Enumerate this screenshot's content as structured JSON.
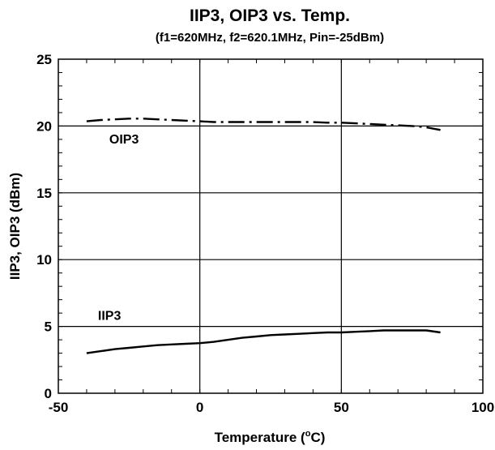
{
  "chart_data": {
    "type": "line",
    "title": "IIP3, OIP3 vs. Temp.",
    "subtitle": "(f1=620MHz, f2=620.1MHz, Pin=-25dBm)",
    "xlabel_prefix": "Temperature (",
    "xlabel_sup": "o",
    "xlabel_suffix": "C)",
    "ylabel": "IIP3, OIP3 (dBm)",
    "xlim": [
      -50,
      100
    ],
    "ylim": [
      0,
      25
    ],
    "x_ticks": [
      -50,
      0,
      50,
      100
    ],
    "y_ticks": [
      0,
      5,
      10,
      15,
      20,
      25
    ],
    "x_tick_labels": [
      "-50",
      "0",
      "50",
      "100"
    ],
    "y_tick_labels": [
      "0",
      "5",
      "10",
      "15",
      "20",
      "25"
    ],
    "grid": true,
    "annotations": [
      {
        "text": "OIP3",
        "x": -32,
        "y": 18.7
      },
      {
        "text": "IIP3",
        "x": -36,
        "y": 5.5
      }
    ],
    "series": [
      {
        "name": "OIP3",
        "style": "dashdot",
        "x": [
          -40,
          -35,
          -30,
          -25,
          -20,
          -15,
          -10,
          -5,
          0,
          5,
          10,
          15,
          20,
          25,
          30,
          35,
          40,
          45,
          50,
          55,
          60,
          65,
          70,
          75,
          80,
          85
        ],
        "y": [
          20.35,
          20.45,
          20.5,
          20.55,
          20.55,
          20.5,
          20.45,
          20.4,
          20.35,
          20.3,
          20.3,
          20.3,
          20.3,
          20.3,
          20.3,
          20.3,
          20.3,
          20.25,
          20.25,
          20.2,
          20.15,
          20.1,
          20.05,
          20.0,
          19.9,
          19.7
        ]
      },
      {
        "name": "IIP3",
        "style": "solid",
        "x": [
          -40,
          -35,
          -30,
          -25,
          -20,
          -15,
          -10,
          -5,
          0,
          5,
          10,
          15,
          20,
          25,
          30,
          35,
          40,
          45,
          50,
          55,
          60,
          65,
          70,
          75,
          80,
          85
        ],
        "y": [
          3.0,
          3.15,
          3.3,
          3.4,
          3.5,
          3.6,
          3.65,
          3.7,
          3.75,
          3.85,
          4.0,
          4.15,
          4.25,
          4.35,
          4.4,
          4.45,
          4.5,
          4.55,
          4.55,
          4.6,
          4.65,
          4.7,
          4.7,
          4.7,
          4.7,
          4.55
        ]
      }
    ]
  }
}
